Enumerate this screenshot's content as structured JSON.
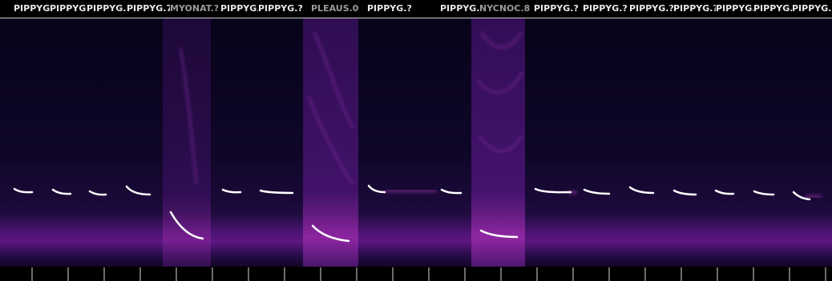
{
  "labels": [
    "PIPPYG.?",
    "PIPPYG.?",
    "PIPPYG.?",
    "PIPPYG.7",
    "MYONAT.?",
    "PIPPYG.?",
    "PIPPYG.?",
    "PLEAUS.0",
    "PIPPYG.?",
    "PIPPYG.?",
    "NYCNOC.8",
    "PIPPYG.?",
    "PIPPYG.?",
    "PIPPYG.?",
    "PIPPYG.?",
    "PIPPYG.?",
    "PIPPYG.?",
    "PIPPYG.?"
  ]
}
